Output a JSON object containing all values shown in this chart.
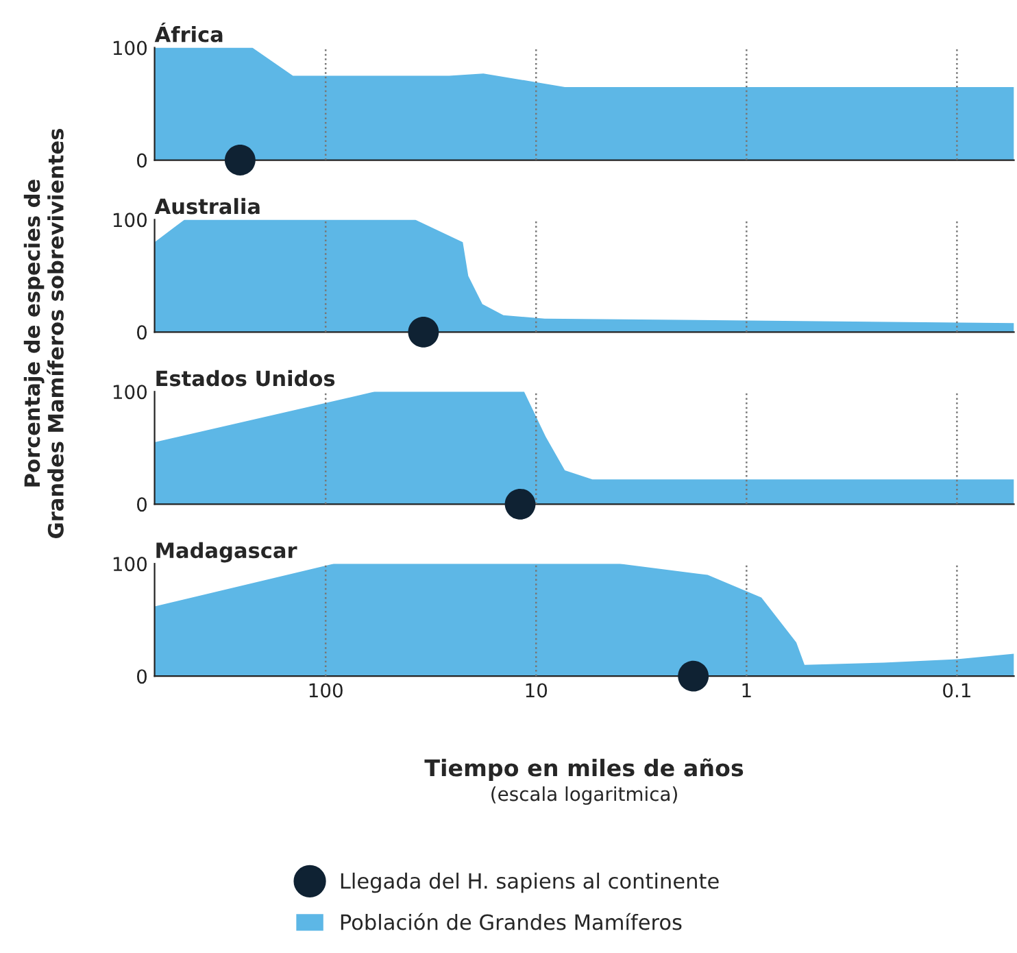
{
  "chart_data": [
    {
      "type": "area",
      "title": "África",
      "ylabel": "Porcentaje de especies de\nGrandes Mamíferos sobrevivientes",
      "log": "x",
      "grid": "x",
      "tick_labels": "y",
      "xlim": [
        650,
        0.0536
      ],
      "xticks": [
        100,
        10,
        1,
        0.1
      ],
      "ylim": [
        0,
        100
      ],
      "yticks": [
        0,
        100
      ],
      "series": [
        {
          "type": "scatter",
          "marker": "circle",
          "color": "#0f2233",
          "x": [
            255
          ],
          "values": [
            0
          ]
        },
        {
          "color": "#5db7e6",
          "x": [
            650,
            223,
            143,
            25.9,
            17.8,
            7.3,
            0.0536
          ],
          "values": [
            100,
            100,
            75,
            75,
            77,
            65,
            65
          ]
        }
      ]
    },
    {
      "type": "area",
      "title": "Australia",
      "log": "x",
      "grid": "x",
      "tick_labels": "y",
      "xlim": [
        650,
        0.0536
      ],
      "xticks": [
        100,
        10,
        1,
        0.1
      ],
      "ylim": [
        0,
        100
      ],
      "yticks": [
        0,
        100
      ],
      "series": [
        {
          "type": "scatter",
          "marker": "circle",
          "color": "#0f2233",
          "x": [
            34.3
          ],
          "values": [
            0
          ]
        },
        {
          "color": "#5db7e6",
          "x": [
            650,
            469,
            37.5,
            22.3,
            21,
            18,
            14.3,
            9.1,
            0.0536
          ],
          "values": [
            80,
            100,
            100,
            80,
            50,
            25,
            15,
            12,
            8
          ]
        }
      ]
    },
    {
      "type": "area",
      "title": "Estados Unidos",
      "log": "x",
      "grid": "x",
      "tick_labels": "y",
      "xlim": [
        650,
        0.0536
      ],
      "xticks": [
        100,
        10,
        1,
        0.1
      ],
      "ylim": [
        0,
        100
      ],
      "yticks": [
        0,
        100
      ],
      "series": [
        {
          "type": "scatter",
          "marker": "circle",
          "color": "#0f2233",
          "x": [
            11.9
          ],
          "values": [
            0
          ]
        },
        {
          "color": "#5db7e6",
          "x": [
            650,
            58.6,
            11.4,
            9,
            7.3,
            5.4,
            0.0536
          ],
          "values": [
            55,
            100,
            100,
            60,
            30,
            22,
            22
          ]
        }
      ]
    },
    {
      "type": "area",
      "title": "Madagascar",
      "xlabel": "Tiempo en miles de años",
      "annotations": [
        "(escala logaritmica)"
      ],
      "log": "x",
      "grid": "x",
      "legend": "bottom",
      "xlim": [
        650,
        0.0536
      ],
      "xticks": [
        100,
        10,
        1,
        0.1
      ],
      "ylim": [
        0,
        100
      ],
      "yticks": [
        0,
        100
      ],
      "series": [
        {
          "type": "scatter",
          "marker": "circle",
          "name": "Llegada del H. sapiens al continente",
          "color": "#0f2233",
          "x": [
            1.79
          ],
          "values": [
            0
          ]
        },
        {
          "name": "Población de Grandes Mamíferos",
          "color": "#5db7e6",
          "x": [
            650,
            91.5,
            4.0,
            1.53,
            0.85,
            0.58,
            0.53,
            0.223,
            0.1,
            0.0536
          ],
          "values": [
            62,
            100,
            100,
            90,
            70,
            30,
            10,
            12,
            15,
            20
          ]
        }
      ]
    }
  ]
}
